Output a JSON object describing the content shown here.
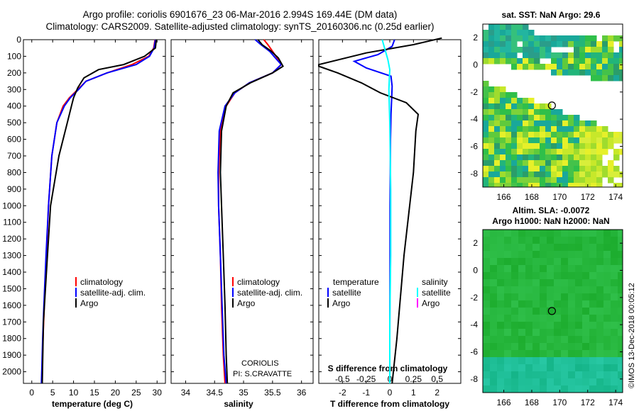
{
  "header": {
    "title_line1": "Argo profile: coriolis 6901676_23 06-Mar-2016 2.994S 169.44E (DM data)",
    "title_line2": "Climatology: CARS2009. Satellite-adjusted climatology: synTS_20160306.nc (0.25d earlier)"
  },
  "colors": {
    "climatology": "#ff0000",
    "satellite": "#0000ff",
    "argo": "#000000",
    "sat_salinity": "#00ffff",
    "argo_salinity": "#ff00ff"
  },
  "chart_data": [
    {
      "type": "line",
      "id": "temperature",
      "xlabel": "temperature (deg C)",
      "ylabel": "",
      "xlim": [
        -2,
        32
      ],
      "ylim": [
        2070,
        0
      ],
      "xticks": [
        "0",
        "5",
        "10",
        "15",
        "20",
        "25",
        "30"
      ],
      "yticks": [
        "0",
        "100",
        "200",
        "300",
        "400",
        "500",
        "600",
        "700",
        "800",
        "900",
        "1000",
        "1100",
        "1200",
        "1300",
        "1400",
        "1500",
        "1600",
        "1700",
        "1800",
        "1900",
        "2000"
      ],
      "legend": [
        "climatology",
        "satellite-adj. clim.",
        "Argo"
      ],
      "series": [
        {
          "name": "climatology",
          "x": [
            29.5,
            29.2,
            28,
            24,
            18,
            13,
            11,
            9,
            7.5,
            6,
            4.8,
            4,
            3.5,
            3,
            2.7,
            2.4
          ],
          "y": [
            0,
            50,
            100,
            150,
            200,
            250,
            300,
            350,
            400,
            500,
            700,
            1000,
            1300,
            1600,
            1800,
            2070
          ]
        },
        {
          "name": "satellite-adj. clim.",
          "x": [
            29.6,
            29.3,
            28.2,
            25,
            18,
            13,
            11.2,
            9.2,
            7.8,
            6,
            4.8,
            4,
            3.4,
            2.9,
            2.6,
            2.3
          ],
          "y": [
            0,
            50,
            100,
            150,
            200,
            250,
            300,
            350,
            400,
            500,
            700,
            1000,
            1300,
            1600,
            1800,
            2070
          ]
        },
        {
          "name": "Argo",
          "x": [
            29.8,
            29.6,
            27,
            22,
            16,
            12.5,
            11,
            10,
            9.5,
            8.5,
            6.5,
            4.5,
            3.5,
            2.8,
            2.5
          ],
          "y": [
            0,
            50,
            100,
            150,
            180,
            230,
            290,
            350,
            400,
            500,
            700,
            1000,
            1400,
            1700,
            2070
          ]
        }
      ]
    },
    {
      "type": "line",
      "id": "salinity",
      "xlabel": "salinity",
      "xlim": [
        33.75,
        36.2
      ],
      "ylim": [
        2070,
        0
      ],
      "xticks": [
        "34",
        "34.5",
        "35",
        "35.5",
        "36"
      ],
      "legend": [
        "climatology",
        "satellite-adj. clim.",
        "Argo"
      ],
      "annotations": [
        "CORIOLIS",
        "PI: S.CRAVATTE"
      ],
      "series": [
        {
          "name": "climatology",
          "x": [
            35.35,
            35.42,
            35.5,
            35.58,
            35.65,
            35.5,
            35.1,
            34.85,
            34.7,
            34.6,
            34.57,
            34.57,
            34.6,
            34.62,
            34.65,
            34.68
          ],
          "y": [
            0,
            30,
            70,
            110,
            150,
            200,
            260,
            320,
            400,
            550,
            800,
            1000,
            1300,
            1600,
            1900,
            2070
          ]
        },
        {
          "name": "satellite-adj. clim.",
          "x": [
            35.2,
            35.3,
            35.45,
            35.55,
            35.65,
            35.5,
            35.1,
            34.85,
            34.68,
            34.58,
            34.56,
            34.57,
            34.6,
            34.63,
            34.66,
            34.7
          ],
          "y": [
            0,
            30,
            70,
            110,
            150,
            200,
            260,
            320,
            400,
            550,
            800,
            1000,
            1300,
            1600,
            1900,
            2070
          ]
        },
        {
          "name": "Argo",
          "x": [
            35.25,
            35.32,
            35.48,
            35.6,
            35.68,
            35.5,
            35.12,
            34.82,
            34.7,
            34.62,
            34.6,
            34.62,
            34.65,
            34.68,
            34.7,
            34.72
          ],
          "y": [
            0,
            30,
            70,
            110,
            160,
            200,
            260,
            320,
            400,
            550,
            800,
            1000,
            1300,
            1600,
            1900,
            2070
          ]
        }
      ]
    },
    {
      "type": "line",
      "id": "difference",
      "xlabel": "T difference from climatology",
      "xlabel_top": "S difference from climatology",
      "xlim": [
        -3,
        3
      ],
      "ylim": [
        2070,
        0
      ],
      "xticks": [
        "-2",
        "-1",
        "0",
        "1",
        "2"
      ],
      "xticks_salinity": [
        "-0.5",
        "-0.25",
        "0",
        "0.25",
        "0.5"
      ],
      "legend_left": [
        "temperature",
        "satellite",
        "Argo"
      ],
      "legend_right": [
        "salinity",
        "satellite",
        "Argo"
      ],
      "series": [
        {
          "name": "T satellite",
          "x": [
            0.2,
            0.1,
            -0.5,
            -1.5,
            -1.0,
            0.05,
            0.1,
            0.08,
            0.05,
            0.03,
            0.02,
            0.01,
            0.01,
            0.0,
            0.0
          ],
          "y": [
            0,
            40,
            90,
            130,
            170,
            220,
            280,
            350,
            450,
            600,
            800,
            1000,
            1400,
            1800,
            2070
          ]
        },
        {
          "name": "T Argo",
          "x": [
            2.2,
            1.0,
            -1.0,
            -3.0,
            -3.0,
            -2.2,
            -1.2,
            -0.4,
            0.7,
            1.2,
            1.1,
            1.0,
            0.6,
            0.3,
            0.1
          ],
          "y": [
            -10,
            30,
            80,
            150,
            160,
            200,
            260,
            320,
            380,
            450,
            550,
            800,
            1300,
            1800,
            2070
          ]
        },
        {
          "name": "S satellite",
          "x": [
            -0.08,
            -0.05,
            -0.02,
            0.0,
            -0.01,
            0.0,
            0.01,
            0.01,
            0.0,
            0.0
          ],
          "y": [
            0,
            60,
            120,
            180,
            300,
            500,
            900,
            1300,
            1700,
            2070
          ]
        }
      ]
    },
    {
      "type": "heatmap",
      "id": "sst_map",
      "title": "sat. SST: NaN Argo: 29.6",
      "xticks": [
        "166",
        "168",
        "170",
        "172",
        "174"
      ],
      "yticks": [
        "2",
        "0",
        "-2",
        "-4",
        "-6",
        "-8"
      ],
      "xlim": [
        164.5,
        174.5
      ],
      "ylim": [
        -9,
        3
      ],
      "marker": {
        "lon": 169.44,
        "lat": -2.994
      }
    },
    {
      "type": "heatmap",
      "id": "sla_map",
      "title_line1": "Altim. SLA: -0.0072",
      "title_line2": "Argo h1000: NaN h2000: NaN",
      "xticks": [
        "166",
        "168",
        "170",
        "172",
        "174"
      ],
      "yticks": [
        "2",
        "0",
        "-2",
        "-4",
        "-6",
        "-8"
      ],
      "xlim": [
        164.5,
        174.5
      ],
      "ylim": [
        -9,
        3
      ],
      "marker": {
        "lon": 169.44,
        "lat": -2.994
      }
    }
  ],
  "credit": "©IMOS 13-Dec-2018 00:05:12"
}
